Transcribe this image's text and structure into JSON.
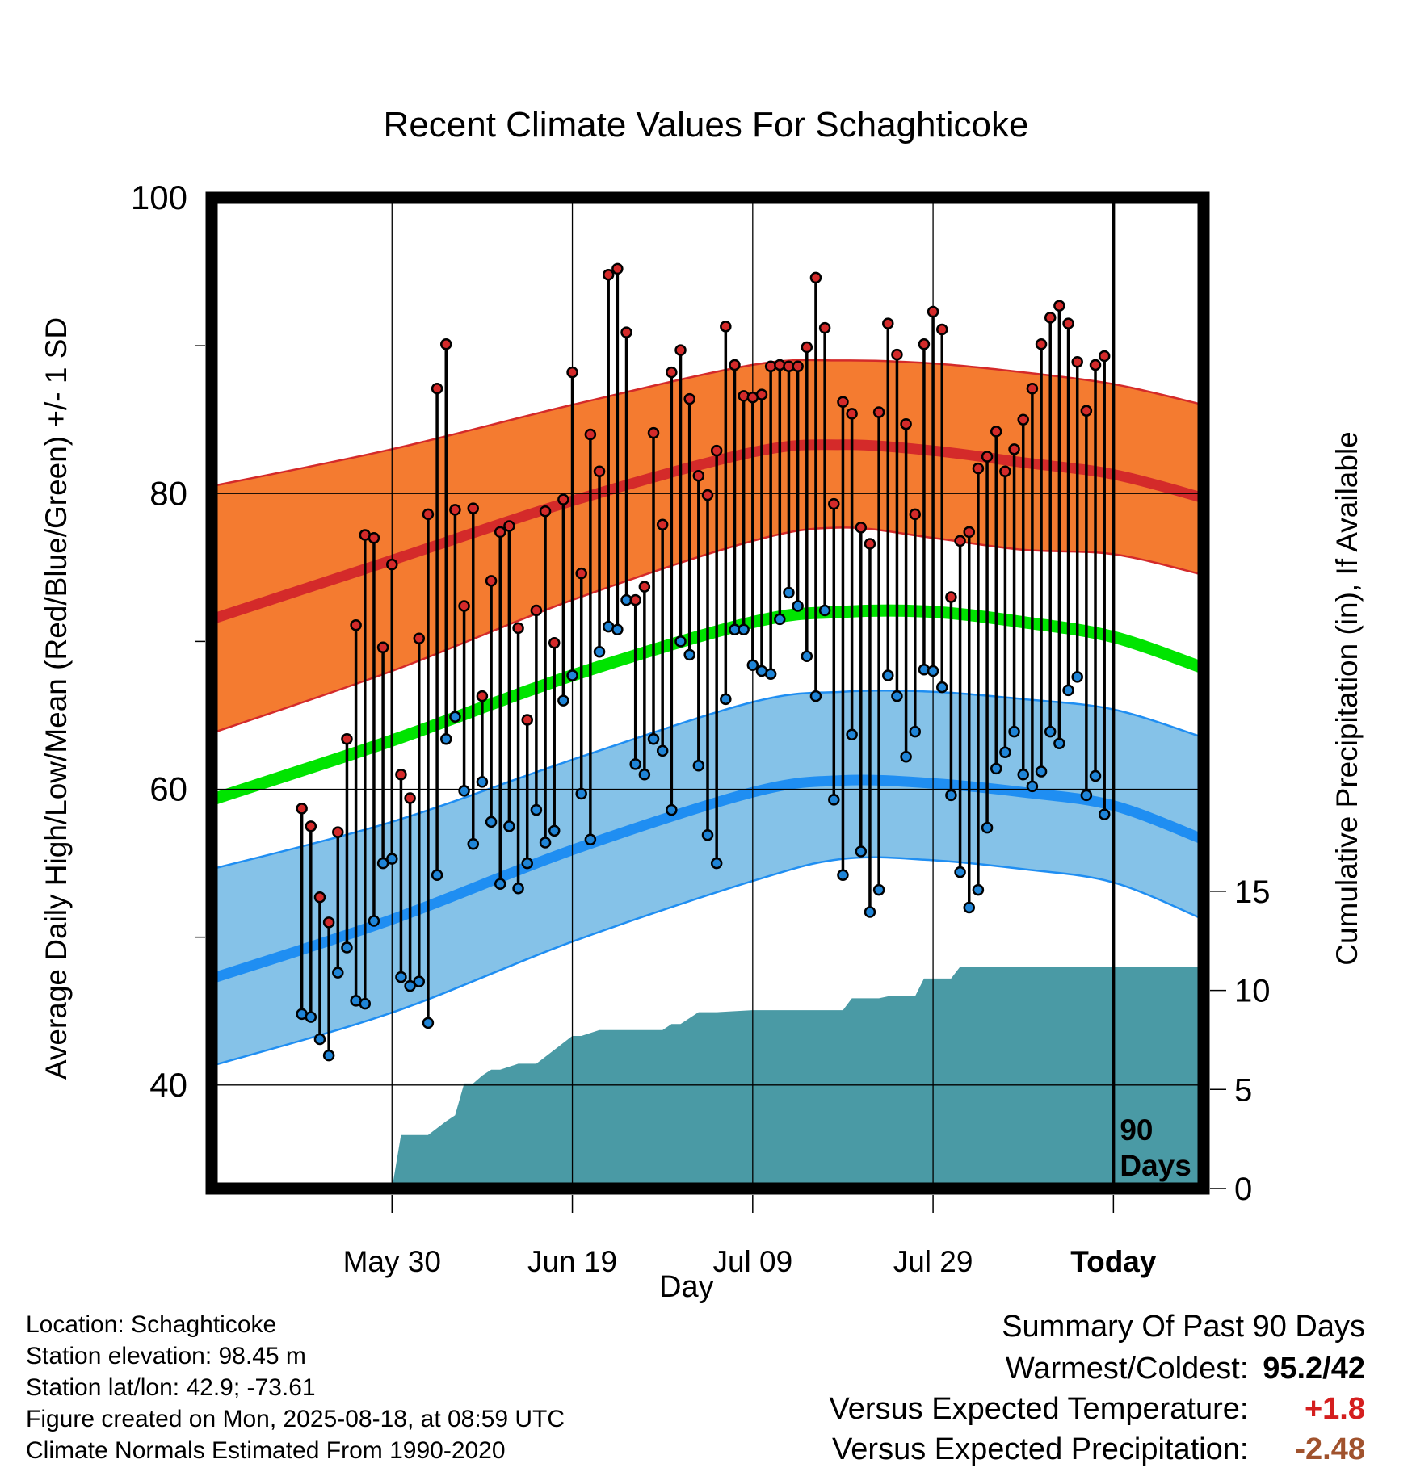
{
  "title": "Recent Climate Values For Schaghticoke",
  "footer": {
    "location": "Location: Schaghticoke",
    "elevation": "Station elevation: 98.45 m",
    "latlon": "Station lat/lon: 42.9; -73.61",
    "created": "Figure created on Mon, 2025-08-18, at 08:59 UTC",
    "normals": "Climate Normals Estimated From 1990-2020"
  },
  "summary": {
    "heading": "Summary Of Past 90 Days",
    "warm_cold_label": "Warmest/Coldest:",
    "warm_cold_value": "95.2/42",
    "temp_label": "Versus Expected Temperature:",
    "temp_value": "+1.8",
    "precip_label": "Versus Expected Precipitation:",
    "precip_value": "-2.48"
  },
  "chart_data": {
    "type": "line",
    "title": "Recent Climate Values For Schaghticoke",
    "xlabel": "Day",
    "ylabel": "Average Daily High/Low/Mean (Red/Blue/Green) +/- 1 SD",
    "y2label": "Cumulative Precipitation (in), If Available",
    "xlim": [
      -100,
      10
    ],
    "ylim": [
      33,
      100
    ],
    "y2lim": [
      0,
      50
    ],
    "x_unit": "days relative to today (2025-08-18)",
    "x_ticks": [
      {
        "x": -80,
        "label": "May 30"
      },
      {
        "x": -60,
        "label": "Jun 19"
      },
      {
        "x": -40,
        "label": "Jul 09"
      },
      {
        "x": -20,
        "label": "Jul 29"
      },
      {
        "x": 0,
        "label": "Today",
        "bold": true
      }
    ],
    "y_ticks": [
      40,
      60,
      80,
      100
    ],
    "y_minor_ticks": [
      50,
      70,
      90
    ],
    "y2_ticks": [
      0,
      5,
      10,
      15
    ],
    "today_marker": {
      "x": 0,
      "label_lines": [
        "90",
        "Days"
      ]
    },
    "grid": true,
    "colors": {
      "high_band": "#f47b30",
      "high_mean": "#d42a2a",
      "low_band": "#85c2e8",
      "low_mean": "#1f8ef2",
      "mean": "#00e400",
      "precip": "#4a9aa5",
      "high_point": "#d42a2a",
      "low_point": "#1f85d8"
    },
    "normals": {
      "x": [
        -100,
        -80,
        -60,
        -40,
        -30,
        -20,
        -10,
        0,
        10
      ],
      "high_mean": [
        71.5,
        75.5,
        79.5,
        82.8,
        83.3,
        82.9,
        82.1,
        81.3,
        79.7
      ],
      "high_upper": [
        80.5,
        83.0,
        86.0,
        88.7,
        89.0,
        88.8,
        88.2,
        87.4,
        86.0
      ],
      "high_lower": [
        63.8,
        68.0,
        72.8,
        76.8,
        77.7,
        77.0,
        76.2,
        75.9,
        74.5
      ],
      "low_mean": [
        47.2,
        51.2,
        55.9,
        59.8,
        60.6,
        60.4,
        59.8,
        58.9,
        56.6
      ],
      "low_upper": [
        54.6,
        57.8,
        62.0,
        65.9,
        66.6,
        66.6,
        66.1,
        65.4,
        63.5
      ],
      "low_lower": [
        41.3,
        44.9,
        49.7,
        53.8,
        55.3,
        55.2,
        54.6,
        53.7,
        51.2
      ],
      "avg_mean": [
        59.3,
        63.3,
        67.7,
        71.3,
        72.0,
        72.0,
        71.3,
        70.3,
        68.2
      ]
    },
    "series": [
      {
        "name": "High",
        "x": [
          -90,
          -89,
          -88,
          -87,
          -86,
          -85,
          -84,
          -83,
          -82,
          -81,
          -80,
          -79,
          -78,
          -77,
          -76,
          -75,
          -74,
          -73,
          -72,
          -71,
          -70,
          -69,
          -68,
          -67,
          -66,
          -65,
          -64,
          -63,
          -62,
          -61,
          -60,
          -59,
          -58,
          -57,
          -56,
          -55,
          -54,
          -53,
          -52,
          -51,
          -50,
          -49,
          -48,
          -47,
          -46,
          -45,
          -44,
          -43,
          -42,
          -41,
          -40,
          -39,
          -38,
          -37,
          -36,
          -35,
          -34,
          -33,
          -32,
          -31,
          -30,
          -29,
          -28,
          -27,
          -26,
          -25,
          -24,
          -23,
          -22,
          -21,
          -20,
          -19,
          -18,
          -17,
          -16,
          -15,
          -14,
          -13,
          -12,
          -11,
          -10,
          -9,
          -8,
          -7,
          -6,
          -5,
          -4,
          -3,
          -2,
          -1
        ],
        "values": [
          58.7,
          57.5,
          52.7,
          51.0,
          57.1,
          63.4,
          71.1,
          77.2,
          77.0,
          69.6,
          75.2,
          61.0,
          59.4,
          70.2,
          78.6,
          87.1,
          90.1,
          78.9,
          72.4,
          79.0,
          66.3,
          74.1,
          77.4,
          77.8,
          70.9,
          64.7,
          72.1,
          78.8,
          69.9,
          79.6,
          88.2,
          74.6,
          84.0,
          81.5,
          94.8,
          95.2,
          90.9,
          72.8,
          73.7,
          84.1,
          77.9,
          88.2,
          89.7,
          86.4,
          81.2,
          79.9,
          82.9,
          91.3,
          88.7,
          86.6,
          86.5,
          86.7,
          88.6,
          88.7,
          88.6,
          88.6,
          89.9,
          94.6,
          91.2,
          79.3,
          86.2,
          85.4,
          77.7,
          76.6,
          85.5,
          91.5,
          89.4,
          84.7,
          78.6,
          90.1,
          92.3,
          91.1,
          73.0,
          76.8,
          77.4,
          81.7,
          82.5,
          84.2,
          81.5,
          83.0,
          85.0,
          87.1,
          90.1,
          91.9,
          92.7,
          91.5,
          88.9,
          85.6,
          88.7,
          89.3
        ]
      },
      {
        "name": "Low",
        "x": [
          -90,
          -89,
          -88,
          -87,
          -86,
          -85,
          -84,
          -83,
          -82,
          -81,
          -80,
          -79,
          -78,
          -77,
          -76,
          -75,
          -74,
          -73,
          -72,
          -71,
          -70,
          -69,
          -68,
          -67,
          -66,
          -65,
          -64,
          -63,
          -62,
          -61,
          -60,
          -59,
          -58,
          -57,
          -56,
          -55,
          -54,
          -53,
          -52,
          -51,
          -50,
          -49,
          -48,
          -47,
          -46,
          -45,
          -44,
          -43,
          -42,
          -41,
          -40,
          -39,
          -38,
          -37,
          -36,
          -35,
          -34,
          -33,
          -32,
          -31,
          -30,
          -29,
          -28,
          -27,
          -26,
          -25,
          -24,
          -23,
          -22,
          -21,
          -20,
          -19,
          -18,
          -17,
          -16,
          -15,
          -14,
          -13,
          -12,
          -11,
          -10,
          -9,
          -8,
          -7,
          -6,
          -5,
          -4,
          -3,
          -2,
          -1
        ],
        "values": [
          44.8,
          44.6,
          43.1,
          42.0,
          47.6,
          49.3,
          45.7,
          45.5,
          51.1,
          55.0,
          55.3,
          47.3,
          46.7,
          47.0,
          44.2,
          54.2,
          63.4,
          64.9,
          59.9,
          56.3,
          60.5,
          57.8,
          53.6,
          57.5,
          53.3,
          55.0,
          58.6,
          56.4,
          57.2,
          66.0,
          67.7,
          59.7,
          56.6,
          69.3,
          71.0,
          70.8,
          72.8,
          61.7,
          61.0,
          63.4,
          62.6,
          58.6,
          70.0,
          69.1,
          61.6,
          56.9,
          55.0,
          66.1,
          70.8,
          70.8,
          68.4,
          68.0,
          67.8,
          71.5,
          73.3,
          72.4,
          69.0,
          66.3,
          72.1,
          59.3,
          54.2,
          63.7,
          55.8,
          51.7,
          53.2,
          67.7,
          66.3,
          62.2,
          63.9,
          68.1,
          68.0,
          66.9,
          59.6,
          54.4,
          52.0,
          53.2,
          57.4,
          61.4,
          62.5,
          63.9,
          61.0,
          60.2,
          61.2,
          63.9,
          63.1,
          66.7,
          67.6,
          59.6,
          60.9,
          58.3
        ]
      }
    ],
    "precip": {
      "x": [
        -100,
        -81,
        -80,
        -79,
        -78,
        -76,
        -74,
        -73,
        -72,
        -71,
        -70,
        -69,
        -68,
        -66,
        -64,
        -62,
        -60,
        -59,
        -57,
        -55,
        -53,
        -50,
        -49,
        -48,
        -46,
        -44,
        -40,
        -38,
        -35,
        -30,
        -29,
        -26,
        -25,
        -23,
        -22,
        -21,
        -18,
        -17,
        -16,
        10
      ],
      "values": [
        0,
        0,
        0,
        2.7,
        2.7,
        2.7,
        3.4,
        3.7,
        5.3,
        5.3,
        5.7,
        6.0,
        6.0,
        6.3,
        6.3,
        7.0,
        7.7,
        7.7,
        8.0,
        8.0,
        8.0,
        8.0,
        8.3,
        8.3,
        8.9,
        8.9,
        9.0,
        9.0,
        9.0,
        9.0,
        9.6,
        9.6,
        9.7,
        9.7,
        9.7,
        10.6,
        10.6,
        11.2,
        11.2,
        11.2
      ]
    }
  }
}
